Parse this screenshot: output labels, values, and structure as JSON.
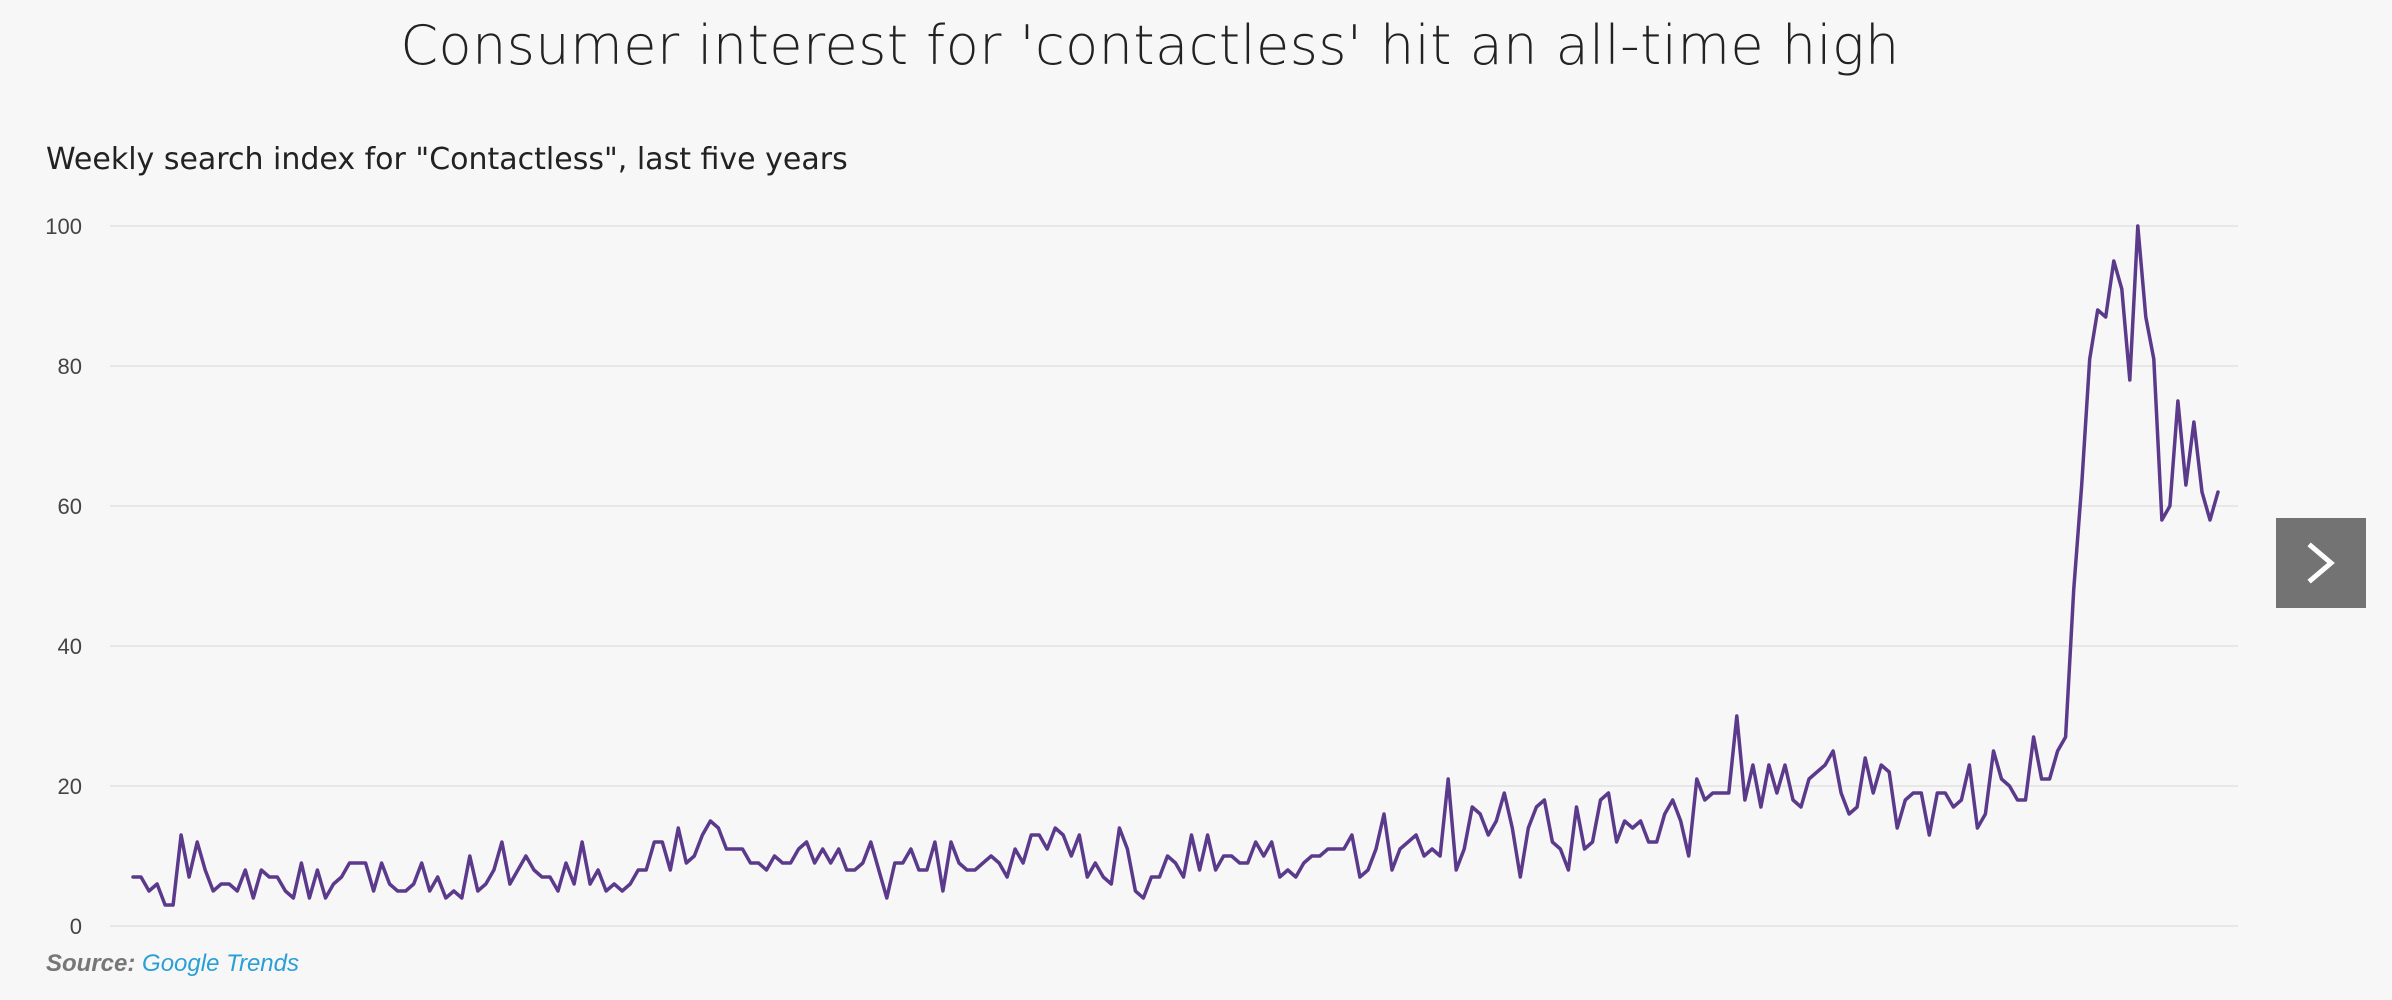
{
  "header": {
    "title": "Consumer interest for 'contactless' hit an all-time high"
  },
  "chart_data": {
    "type": "line",
    "title": "Consumer interest for 'contactless' hit an all-time high",
    "subtitle": "Weekly search index for \"Contactless\", last five years",
    "xlabel": "",
    "ylabel": "",
    "ylim": [
      0,
      100
    ],
    "yticks": [
      "0",
      "20",
      "40",
      "60",
      "80",
      "100"
    ],
    "grid": true,
    "legend": "none",
    "series": [
      {
        "color": "#5b3a8c",
        "values": [
          7,
          7,
          5,
          6,
          3,
          3,
          13,
          7,
          12,
          8,
          5,
          6,
          6,
          5,
          8,
          4,
          8,
          7,
          7,
          5,
          4,
          9,
          4,
          8,
          4,
          6,
          7,
          9,
          9,
          9,
          5,
          9,
          6,
          5,
          5,
          6,
          9,
          5,
          7,
          4,
          5,
          4,
          10,
          5,
          6,
          8,
          12,
          6,
          8,
          10,
          8,
          7,
          7,
          5,
          9,
          6,
          12,
          6,
          8,
          5,
          6,
          5,
          6,
          8,
          8,
          12,
          12,
          8,
          14,
          9,
          10,
          13,
          15,
          14,
          11,
          11,
          11,
          9,
          9,
          8,
          10,
          9,
          9,
          11,
          12,
          9,
          11,
          9,
          11,
          8,
          8,
          9,
          12,
          8,
          4,
          9,
          9,
          11,
          8,
          8,
          12,
          5,
          12,
          9,
          8,
          8,
          9,
          10,
          9,
          7,
          11,
          9,
          13,
          13,
          11,
          14,
          13,
          10,
          13,
          7,
          9,
          7,
          6,
          14,
          11,
          5,
          4,
          7,
          7,
          10,
          9,
          7,
          13,
          8,
          13,
          8,
          10,
          10,
          9,
          9,
          12,
          10,
          12,
          7,
          8,
          7,
          9,
          10,
          10,
          11,
          11,
          11,
          13,
          7,
          8,
          11,
          16,
          8,
          11,
          12,
          13,
          10,
          11,
          10,
          21,
          8,
          11,
          17,
          16,
          13,
          15,
          19,
          14,
          7,
          14,
          17,
          18,
          12,
          11,
          8,
          17,
          11,
          12,
          18,
          19,
          12,
          15,
          14,
          15,
          12,
          12,
          16,
          18,
          15,
          10,
          21,
          18,
          19,
          19,
          19,
          30,
          18,
          23,
          17,
          23,
          19,
          23,
          18,
          17,
          21,
          22,
          23,
          25,
          19,
          16,
          17,
          24,
          19,
          23,
          22,
          14,
          18,
          19,
          19,
          13,
          19,
          19,
          17,
          18,
          23,
          14,
          16,
          25,
          21,
          20,
          18,
          18,
          27,
          21,
          21,
          25,
          27,
          48,
          63,
          81,
          88,
          87,
          95,
          91,
          78,
          100,
          87,
          81,
          58,
          60,
          75,
          63,
          72,
          62,
          58,
          62
        ]
      }
    ]
  },
  "source": {
    "label": "Source:",
    "link_text": "Google Trends"
  },
  "navigation": {
    "next_icon": "chevron-right-icon"
  }
}
